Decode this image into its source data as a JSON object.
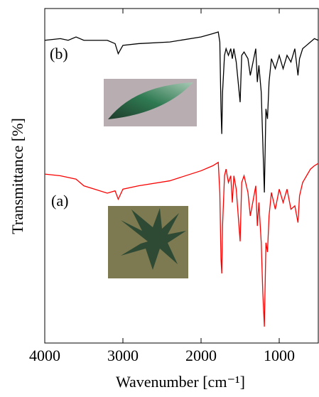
{
  "chart_data": {
    "type": "line",
    "xlabel": "Wavenumber [cm⁻¹]",
    "ylabel": "Transmittance [%]",
    "xlim": [
      4000,
      500
    ],
    "xticks": [
      4000,
      3000,
      2000,
      1000
    ],
    "ylim": [
      0,
      100
    ],
    "series": [
      {
        "name": "(b)",
        "color": "#000000",
        "x": [
          4000,
          3800,
          3700,
          3600,
          3500,
          3200,
          3100,
          3060,
          3000,
          2800,
          2400,
          2000,
          1850,
          1780,
          1760,
          1745,
          1735,
          1725,
          1700,
          1680,
          1650,
          1620,
          1600,
          1580,
          1550,
          1500,
          1480,
          1450,
          1400,
          1370,
          1300,
          1280,
          1260,
          1230,
          1210,
          1190,
          1170,
          1150,
          1130,
          1100,
          1050,
          1000,
          950,
          900,
          850,
          800,
          760,
          740,
          700,
          650,
          600,
          550,
          500
        ],
        "values": [
          90.5,
          91,
          90.5,
          91.5,
          90.5,
          90.5,
          89.5,
          86.5,
          89,
          89.5,
          90,
          91.5,
          92.5,
          93,
          90,
          70,
          62.5,
          75,
          86,
          88,
          86,
          88,
          85,
          88,
          84,
          72,
          86,
          87,
          85,
          80,
          88,
          78,
          83,
          75,
          60,
          45,
          70,
          67,
          78,
          85,
          82,
          86,
          82,
          86,
          84,
          88,
          80,
          85,
          88,
          89,
          90,
          91,
          90.5
        ]
      },
      {
        "name": "(a)",
        "color": "#ff0000",
        "x": [
          4000,
          3800,
          3700,
          3600,
          3500,
          3200,
          3100,
          3060,
          3000,
          2800,
          2400,
          2000,
          1850,
          1780,
          1760,
          1745,
          1735,
          1725,
          1700,
          1680,
          1650,
          1620,
          1600,
          1580,
          1550,
          1500,
          1480,
          1450,
          1400,
          1370,
          1300,
          1280,
          1260,
          1230,
          1210,
          1190,
          1170,
          1150,
          1130,
          1100,
          1050,
          1000,
          950,
          900,
          850,
          800,
          760,
          740,
          700,
          650,
          600,
          550,
          500
        ],
        "values": [
          50.5,
          50,
          49.5,
          49,
          47,
          44.8,
          45.5,
          43,
          46,
          47,
          48.5,
          51.5,
          53,
          54,
          45,
          25,
          20.8,
          35,
          50,
          52,
          48,
          50,
          42,
          50,
          46,
          30.4,
          48,
          50,
          45,
          38,
          47,
          35,
          42,
          30,
          15,
          4.9,
          30,
          27.2,
          38,
          45,
          40,
          46,
          42,
          46,
          40,
          41,
          36,
          44,
          48,
          50,
          52,
          53,
          53.7
        ]
      }
    ]
  }
}
